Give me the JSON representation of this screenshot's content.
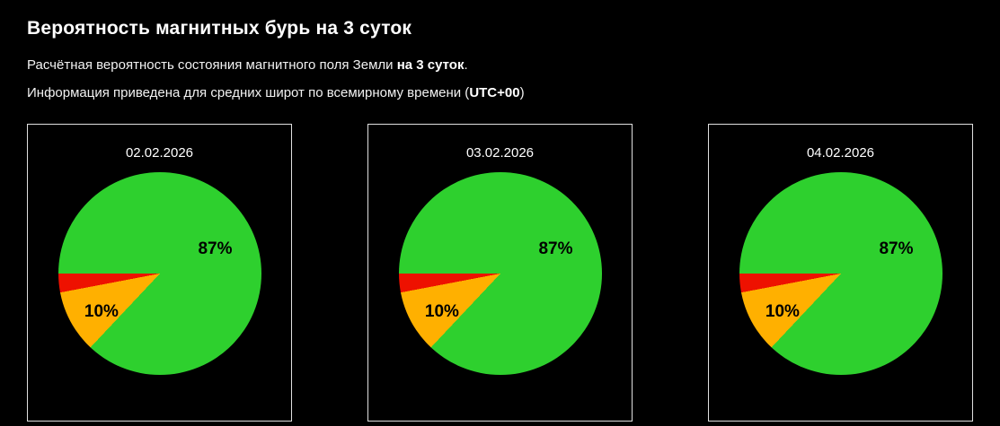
{
  "header": {
    "title": "Вероятность магнитных бурь на 3 суток",
    "subtitle_prefix": "Расчётная вероятность состояния магнитного поля Земли ",
    "subtitle_bold": "на 3 суток",
    "subtitle_suffix": ".",
    "info_prefix": "Информация приведена для средних широт по всемирному времени (",
    "info_bold": "UTC+00",
    "info_suffix": ")"
  },
  "colors": {
    "calm_green": "#2ed02e",
    "disturbed_orange": "#ffb000",
    "storm_red": "#ee1100",
    "panel_border": "#e0e0e0",
    "background": "#000000",
    "text": "#ffffff"
  },
  "chart_data": [
    {
      "type": "pie",
      "title": "02.02.2026",
      "legend": "none",
      "red_slice_end_deg": 270,
      "slices": [
        {
          "label": "87%",
          "value": 87,
          "color": "#2ed02e"
        },
        {
          "label": "10%",
          "value": 10,
          "color": "#ffb000"
        },
        {
          "label": "",
          "value": 3,
          "color": "#ee1100"
        }
      ]
    },
    {
      "type": "pie",
      "title": "03.02.2026",
      "legend": "none",
      "red_slice_end_deg": 270,
      "slices": [
        {
          "label": "87%",
          "value": 87,
          "color": "#2ed02e"
        },
        {
          "label": "10%",
          "value": 10,
          "color": "#ffb000"
        },
        {
          "label": "",
          "value": 3,
          "color": "#ee1100"
        }
      ]
    },
    {
      "type": "pie",
      "title": "04.02.2026",
      "legend": "none",
      "red_slice_end_deg": 270,
      "slices": [
        {
          "label": "87%",
          "value": 87,
          "color": "#2ed02e"
        },
        {
          "label": "10%",
          "value": 10,
          "color": "#ffb000"
        },
        {
          "label": "",
          "value": 3,
          "color": "#ee1100"
        }
      ]
    }
  ]
}
